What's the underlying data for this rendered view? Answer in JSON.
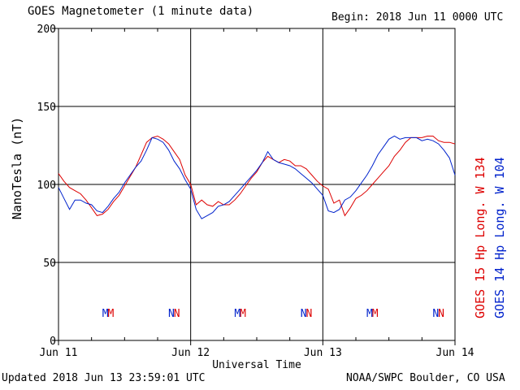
{
  "header": {
    "title": "GOES Magnetometer (1 minute data)",
    "begin": "Begin:  2018 Jun 11 0000 UTC"
  },
  "footer": {
    "updated": "Updated 2018 Jun 13 23:59:01 UTC",
    "source": "NOAA/SWPC Boulder, CO USA"
  },
  "colors": {
    "goes15": "#dd0000",
    "goes14": "#0022cc",
    "grid": "#000000"
  },
  "chart_data": {
    "type": "line",
    "ylabel": "NanoTesla (nT)",
    "xlabel": "Universal Time",
    "ylim": [
      0,
      200
    ],
    "xlim": [
      0,
      72
    ],
    "x_unit": "hours since 2018 Jun 11 0000 UTC",
    "yticks": [
      0,
      50,
      100,
      150,
      200
    ],
    "xticks": [
      {
        "x": 0,
        "label": "Jun 11"
      },
      {
        "x": 24,
        "label": "Jun 12"
      },
      {
        "x": 48,
        "label": "Jun 13"
      },
      {
        "x": 72,
        "label": "Jun 14"
      }
    ],
    "grid": true,
    "legend_position": "right, vertical",
    "series": [
      {
        "name": "GOES 15 Hp  Long. W 134",
        "color": "#dd0000",
        "x": [
          0,
          1,
          2,
          3,
          4,
          5,
          6,
          7,
          8,
          9,
          10,
          11,
          12,
          13,
          14,
          15,
          16,
          17,
          18,
          19,
          20,
          21,
          22,
          23,
          24,
          25,
          26,
          27,
          28,
          29,
          30,
          31,
          32,
          33,
          34,
          35,
          36,
          37,
          38,
          39,
          40,
          41,
          42,
          43,
          44,
          45,
          46,
          47,
          48,
          49,
          50,
          51,
          52,
          53,
          54,
          55,
          56,
          57,
          58,
          59,
          60,
          61,
          62,
          63,
          64,
          65,
          66,
          67,
          68,
          69,
          70,
          71,
          72
        ],
        "values": [
          107,
          102,
          98,
          96,
          94,
          90,
          85,
          80,
          81,
          84,
          89,
          93,
          99,
          105,
          111,
          119,
          127,
          130,
          131,
          129,
          126,
          121,
          116,
          106,
          100,
          87,
          90,
          87,
          86,
          89,
          87,
          87,
          90,
          94,
          99,
          104,
          108,
          114,
          118,
          116,
          114,
          116,
          115,
          112,
          112,
          110,
          106,
          102,
          99,
          97,
          88,
          90,
          80,
          85,
          91,
          93,
          96,
          100,
          104,
          108,
          112,
          118,
          122,
          127,
          130,
          130,
          130,
          131,
          131,
          128,
          127,
          127,
          126
        ],
        "markers": [
          {
            "x": 9.5,
            "label": "M"
          },
          {
            "x": 21.5,
            "label": "N"
          },
          {
            "x": 33.5,
            "label": "M"
          },
          {
            "x": 45.5,
            "label": "N"
          },
          {
            "x": 57.5,
            "label": "M"
          },
          {
            "x": 69.5,
            "label": "N"
          }
        ]
      },
      {
        "name": "GOES 14 Hp  Long. W 104",
        "color": "#0022cc",
        "x": [
          0,
          1,
          2,
          3,
          4,
          5,
          6,
          7,
          8,
          9,
          10,
          11,
          12,
          13,
          14,
          15,
          16,
          17,
          18,
          19,
          20,
          21,
          22,
          23,
          24,
          25,
          26,
          27,
          28,
          29,
          30,
          31,
          32,
          33,
          34,
          35,
          36,
          37,
          38,
          39,
          40,
          41,
          42,
          43,
          44,
          45,
          46,
          47,
          48,
          49,
          50,
          51,
          52,
          53,
          54,
          55,
          56,
          57,
          58,
          59,
          60,
          61,
          62,
          63,
          64,
          65,
          66,
          67,
          68,
          69,
          70,
          71,
          72
        ],
        "values": [
          98,
          91,
          84,
          90,
          90,
          88,
          87,
          83,
          82,
          86,
          91,
          95,
          101,
          106,
          111,
          115,
          122,
          130,
          129,
          127,
          122,
          115,
          110,
          103,
          97,
          84,
          78,
          80,
          82,
          86,
          87,
          89,
          93,
          97,
          101,
          105,
          109,
          114,
          121,
          116,
          114,
          113,
          112,
          110,
          107,
          104,
          101,
          97,
          93,
          83,
          82,
          84,
          90,
          92,
          96,
          101,
          106,
          112,
          119,
          124,
          129,
          131,
          129,
          130,
          130,
          130,
          128,
          129,
          128,
          126,
          122,
          117,
          106
        ],
        "markers": [
          {
            "x": 8.5,
            "label": "M"
          },
          {
            "x": 20.5,
            "label": "N"
          },
          {
            "x": 32.5,
            "label": "M"
          },
          {
            "x": 44.5,
            "label": "N"
          },
          {
            "x": 56.5,
            "label": "M"
          },
          {
            "x": 68.5,
            "label": "N"
          }
        ]
      }
    ]
  }
}
